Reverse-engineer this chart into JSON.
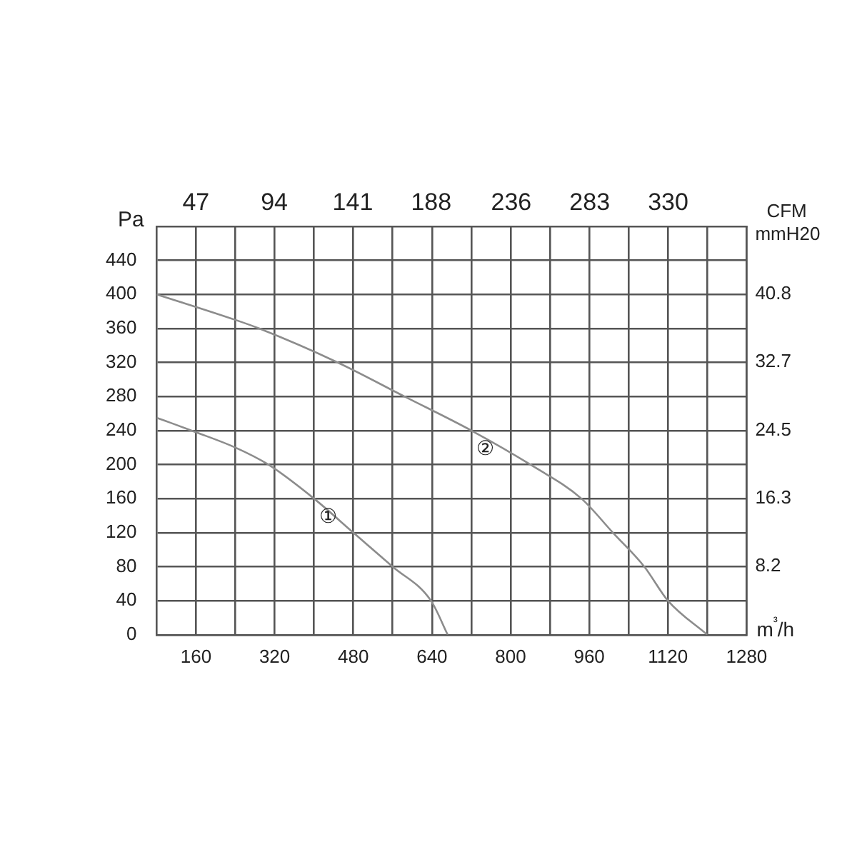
{
  "chart_data": {
    "type": "line",
    "xlabel": "m³/h",
    "ylabel": "Pa",
    "y2label": "mmH20",
    "x2label": "CFM",
    "xlim": [
      80,
      1280
    ],
    "xticks": [
      160,
      {
        "value": 240,
        "label": null
      },
      320,
      {
        "value": 400,
        "label": null
      },
      480,
      {
        "value": 560,
        "label": null
      },
      640,
      {
        "value": 720,
        "label": null
      },
      800,
      {
        "value": 880,
        "label": null
      },
      960,
      {
        "value": 1040,
        "label": null
      },
      1120,
      {
        "value": 1200,
        "label": null
      },
      1280
    ],
    "x2lim": [
      23.5,
      377
    ],
    "x2ticks": [
      47,
      94,
      141,
      188,
      236,
      283,
      330
    ],
    "ylim": [
      0,
      480
    ],
    "yticks": [
      0,
      40,
      80,
      120,
      160,
      200,
      240,
      280,
      320,
      360,
      400,
      440
    ],
    "y2lim": [
      0,
      48.94
    ],
    "y2ticks": [
      8.2,
      16.3,
      24.5,
      32.7,
      40.8
    ],
    "grid": true,
    "legend": false,
    "marker": "none",
    "line_style": "solid",
    "series": [
      {
        "color": "#8c8c8c",
        "x": [
          80,
          160,
          240,
          307,
          400,
          480,
          560,
          638,
          672
        ],
        "values": [
          255,
          238,
          220,
          200,
          160,
          120,
          80,
          40,
          0
        ]
      },
      {
        "color": "#8c8c8c",
        "x": [
          80,
          240,
          288,
          448,
          584,
          720,
          840,
          944,
          1008,
          1072,
          1120,
          1200
        ],
        "values": [
          400,
          370,
          360,
          320,
          280,
          240,
          200,
          160,
          120,
          80,
          40,
          0
        ]
      }
    ],
    "annotations": [
      "①",
      "②"
    ]
  }
}
